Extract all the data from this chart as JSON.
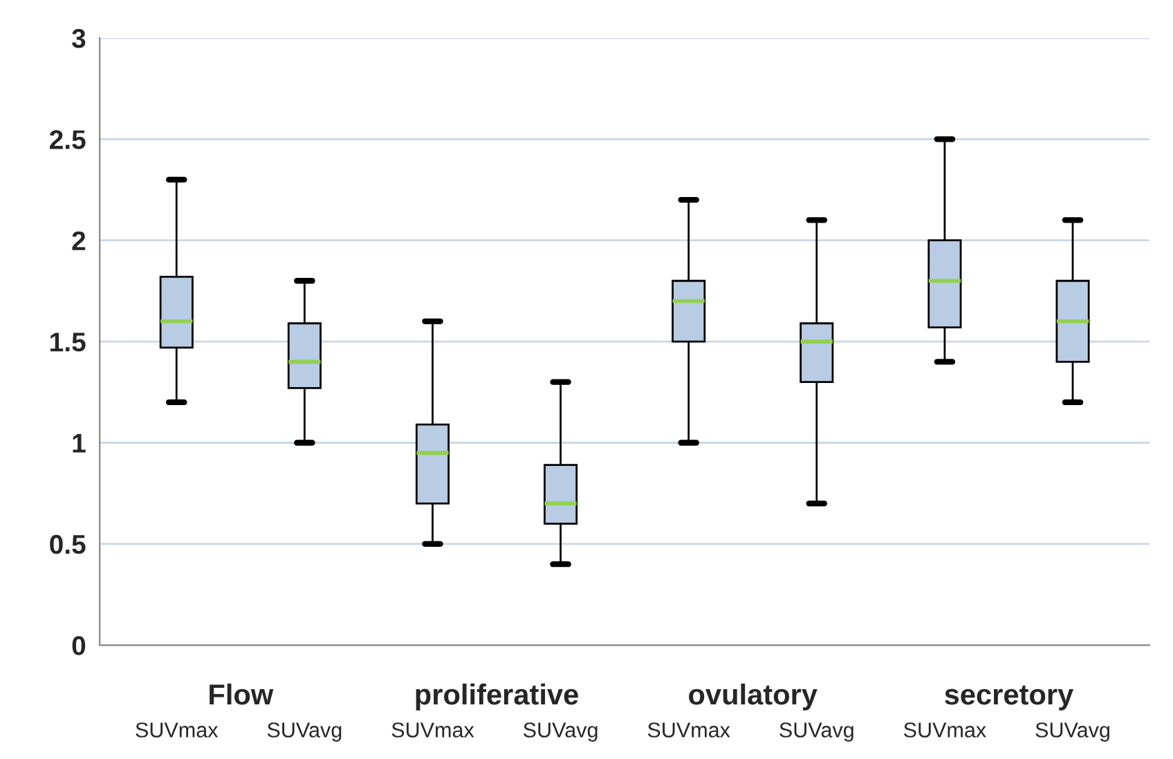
{
  "chart_data": {
    "type": "box",
    "categories": [
      "SUVmax",
      "SUVavg",
      "SUVmax",
      "SUVavg",
      "SUVmax",
      "SUVavg",
      "SUVmax",
      "SUVavg"
    ],
    "annotations": [
      "Flow",
      "proliferative",
      "ovulatory",
      "secretory"
    ],
    "boxes": [
      {
        "low": 1.2,
        "q1": 1.47,
        "median": 1.6,
        "q3": 1.82,
        "high": 2.3
      },
      {
        "low": 1.0,
        "q1": 1.27,
        "median": 1.4,
        "q3": 1.59,
        "high": 1.8
      },
      {
        "low": 0.5,
        "q1": 0.7,
        "median": 0.95,
        "q3": 1.09,
        "high": 1.6
      },
      {
        "low": 0.4,
        "q1": 0.6,
        "median": 0.7,
        "q3": 0.89,
        "high": 1.3
      },
      {
        "low": 1.0,
        "q1": 1.5,
        "median": 1.7,
        "q3": 1.8,
        "high": 2.2
      },
      {
        "low": 0.7,
        "q1": 1.3,
        "median": 1.5,
        "q3": 1.59,
        "high": 2.1
      },
      {
        "low": 1.4,
        "q1": 1.57,
        "median": 1.8,
        "q3": 2.0,
        "high": 2.5
      },
      {
        "low": 1.2,
        "q1": 1.4,
        "median": 1.6,
        "q3": 1.8,
        "high": 2.1
      }
    ],
    "color": "#b8cce4",
    "ylim": [
      0,
      3
    ],
    "yticks": [
      0,
      0.5,
      1,
      1.5,
      2,
      2.5,
      3
    ],
    "grid": "y"
  }
}
